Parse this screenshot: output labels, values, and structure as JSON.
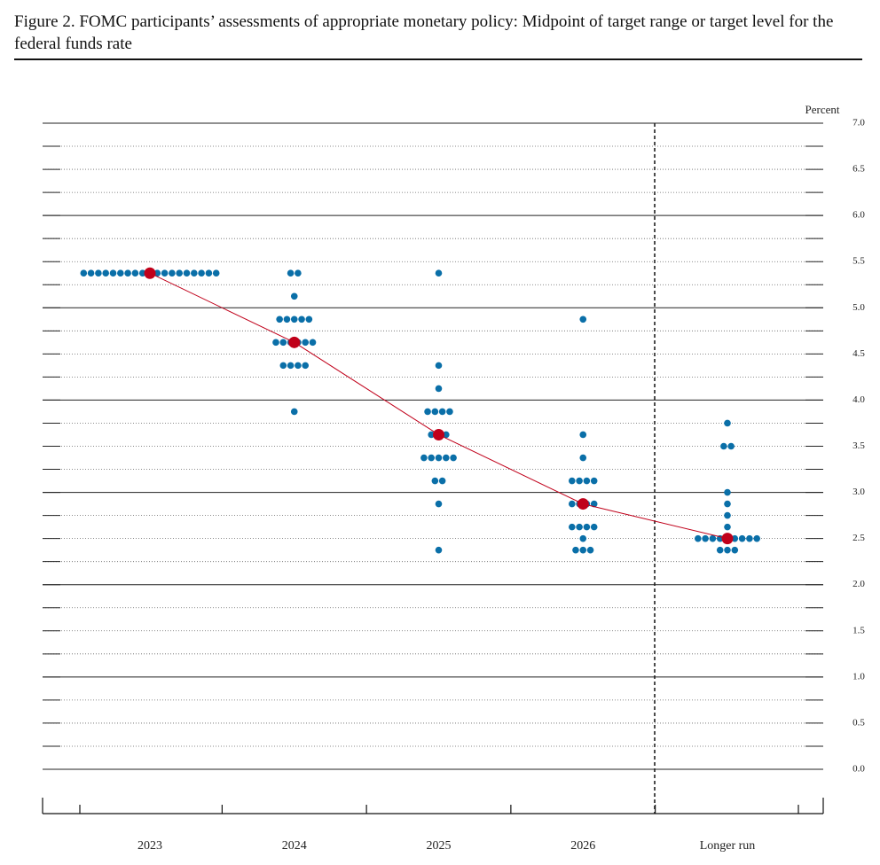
{
  "chart_data": {
    "type": "dot",
    "title": "Figure 2.  FOMC participants’ assessments of appropriate monetary policy: Midpoint of target range or target level for the federal funds rate",
    "y_label": "Percent",
    "categories": [
      "2023",
      "2024",
      "2025",
      "2026",
      "Longer run"
    ],
    "dots": [
      [
        {
          "value": 5.375,
          "count": 19
        }
      ],
      [
        {
          "value": 5.375,
          "count": 2
        },
        {
          "value": 5.125,
          "count": 1
        },
        {
          "value": 4.875,
          "count": 5
        },
        {
          "value": 4.625,
          "count": 6
        },
        {
          "value": 4.375,
          "count": 4
        },
        {
          "value": 3.875,
          "count": 1
        }
      ],
      [
        {
          "value": 5.375,
          "count": 1
        },
        {
          "value": 4.375,
          "count": 1
        },
        {
          "value": 4.125,
          "count": 1
        },
        {
          "value": 3.875,
          "count": 4
        },
        {
          "value": 3.625,
          "count": 3
        },
        {
          "value": 3.375,
          "count": 5
        },
        {
          "value": 3.125,
          "count": 2
        },
        {
          "value": 2.875,
          "count": 1
        },
        {
          "value": 2.375,
          "count": 1
        }
      ],
      [
        {
          "value": 4.875,
          "count": 1
        },
        {
          "value": 3.625,
          "count": 1
        },
        {
          "value": 3.375,
          "count": 1
        },
        {
          "value": 3.125,
          "count": 4
        },
        {
          "value": 2.875,
          "count": 4
        },
        {
          "value": 2.625,
          "count": 4
        },
        {
          "value": 2.5,
          "count": 1
        },
        {
          "value": 2.375,
          "count": 3
        }
      ],
      [
        {
          "value": 3.75,
          "count": 1
        },
        {
          "value": 3.5,
          "count": 2
        },
        {
          "value": 3.0,
          "count": 1
        },
        {
          "value": 2.875,
          "count": 1
        },
        {
          "value": 2.75,
          "count": 1
        },
        {
          "value": 2.625,
          "count": 1
        },
        {
          "value": 2.5,
          "count": 9
        },
        {
          "value": 2.375,
          "count": 3
        }
      ]
    ],
    "dot_color": "#0a6fa8",
    "medians": [
      5.375,
      4.625,
      3.625,
      2.875,
      2.5
    ],
    "median_color": "#c0001a",
    "ylim": [
      0,
      7
    ],
    "yticks": [
      {
        "value": 0,
        "label": "0.0"
      },
      {
        "value": 0.5,
        "label": "0.5"
      },
      {
        "value": 1,
        "label": "1.0"
      },
      {
        "value": 1.5,
        "label": "1.5"
      },
      {
        "value": 2,
        "label": "2.0"
      },
      {
        "value": 2.5,
        "label": "2.5"
      },
      {
        "value": 3,
        "label": "3.0"
      },
      {
        "value": 3.5,
        "label": "3.5"
      },
      {
        "value": 4,
        "label": "4.0"
      },
      {
        "value": 4.5,
        "label": "4.5"
      },
      {
        "value": 5,
        "label": "5.0"
      },
      {
        "value": 5.5,
        "label": "5.5"
      },
      {
        "value": 6,
        "label": "6.0"
      },
      {
        "value": 6.5,
        "label": "6.5"
      },
      {
        "value": 7,
        "label": "7.0"
      }
    ],
    "minor_yticks": [
      0.25,
      0.75,
      1.25,
      1.75,
      2.25,
      2.75,
      3.25,
      3.75,
      4.25,
      4.75,
      5.25,
      5.75,
      6.25,
      6.75
    ],
    "grid": true
  }
}
